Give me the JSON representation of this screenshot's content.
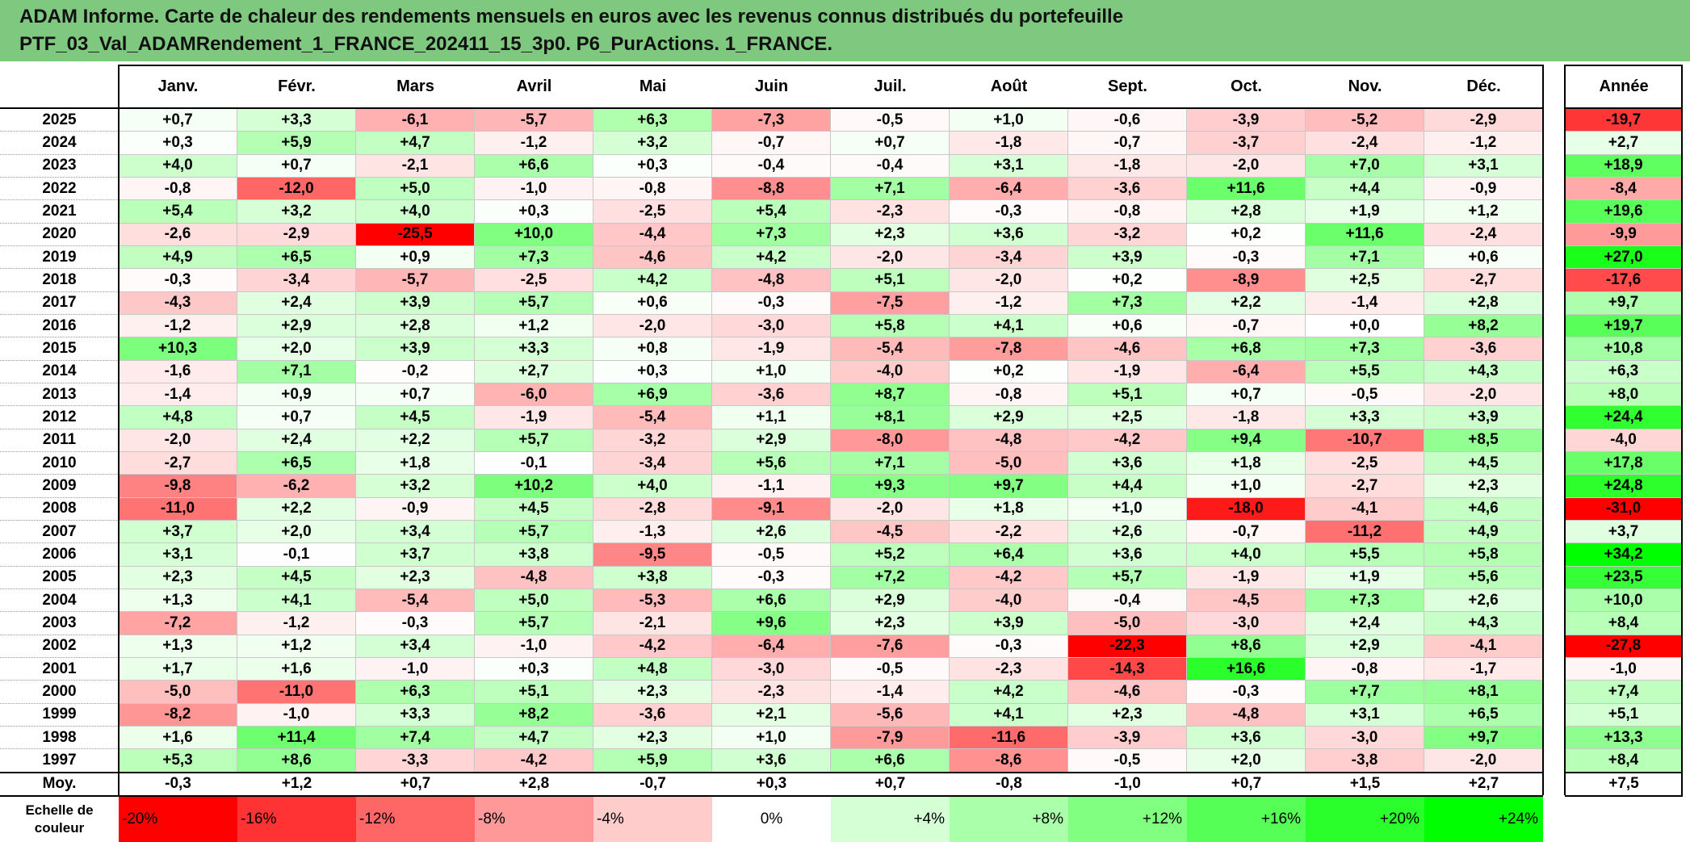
{
  "title": {
    "line1": "ADAM Informe. Carte de chaleur des rendements mensuels en euros avec les revenus connus distribués du portefeuille",
    "line2": "PTF_03_Val_ADAMRendement_1_FRANCE_202411_15_3p0. P6_PurActions. 1_FRANCE."
  },
  "chart_data": {
    "type": "heatmap",
    "months": [
      "Janv.",
      "Févr.",
      "Mars",
      "Avril",
      "Mai",
      "Juin",
      "Juil.",
      "Août",
      "Sept.",
      "Oct.",
      "Nov.",
      "Déc."
    ],
    "annual_label": "Année",
    "years": [
      "2025",
      "2024",
      "2023",
      "2022",
      "2021",
      "2020",
      "2019",
      "2018",
      "2017",
      "2016",
      "2015",
      "2014",
      "2013",
      "2012",
      "2011",
      "2010",
      "2009",
      "2008",
      "2007",
      "2006",
      "2005",
      "2004",
      "2003",
      "2002",
      "2001",
      "2000",
      "1999",
      "1998",
      "1997"
    ],
    "values": [
      [
        "+0,7",
        "+3,3",
        "-6,1",
        "-5,7",
        "+6,3",
        "-7,3",
        "-0,5",
        "+1,0",
        "-0,6",
        "-3,9",
        "-5,2",
        "-2,9"
      ],
      [
        "+0,3",
        "+5,9",
        "+4,7",
        "-1,2",
        "+3,2",
        "-0,7",
        "+0,7",
        "-1,8",
        "-0,7",
        "-3,7",
        "-2,4",
        "-1,2"
      ],
      [
        "+4,0",
        "+0,7",
        "-2,1",
        "+6,6",
        "+0,3",
        "-0,4",
        "-0,4",
        "+3,1",
        "-1,8",
        "-2,0",
        "+7,0",
        "+3,1"
      ],
      [
        "-0,8",
        "-12,0",
        "+5,0",
        "-1,0",
        "-0,8",
        "-8,8",
        "+7,1",
        "-6,4",
        "-3,6",
        "+11,6",
        "+4,4",
        "-0,9"
      ],
      [
        "+5,4",
        "+3,2",
        "+4,0",
        "+0,3",
        "-2,5",
        "+5,4",
        "-2,3",
        "-0,3",
        "-0,8",
        "+2,8",
        "+1,9",
        "+1,2"
      ],
      [
        "-2,6",
        "-2,9",
        "-25,5",
        "+10,0",
        "-4,4",
        "+7,3",
        "+2,3",
        "+3,6",
        "-3,2",
        "+0,2",
        "+11,6",
        "-2,4"
      ],
      [
        "+4,9",
        "+6,5",
        "+0,9",
        "+7,3",
        "-4,6",
        "+4,2",
        "-2,0",
        "-3,4",
        "+3,9",
        "-0,3",
        "+7,1",
        "+0,6"
      ],
      [
        "-0,3",
        "-3,4",
        "-5,7",
        "-2,5",
        "+4,2",
        "-4,8",
        "+5,1",
        "-2,0",
        "+0,2",
        "-8,9",
        "+2,5",
        "-2,7"
      ],
      [
        "-4,3",
        "+2,4",
        "+3,9",
        "+5,7",
        "+0,6",
        "-0,3",
        "-7,5",
        "-1,2",
        "+7,3",
        "+2,2",
        "-1,4",
        "+2,8"
      ],
      [
        "-1,2",
        "+2,9",
        "+2,8",
        "+1,2",
        "-2,0",
        "-3,0",
        "+5,8",
        "+4,1",
        "+0,6",
        "-0,7",
        "+0,0",
        "+8,2"
      ],
      [
        "+10,3",
        "+2,0",
        "+3,9",
        "+3,3",
        "+0,8",
        "-1,9",
        "-5,4",
        "-7,8",
        "-4,6",
        "+6,8",
        "+7,3",
        "-3,6"
      ],
      [
        "-1,6",
        "+7,1",
        "-0,2",
        "+2,7",
        "+0,3",
        "+1,0",
        "-4,0",
        "+0,2",
        "-1,9",
        "-6,4",
        "+5,5",
        "+4,3"
      ],
      [
        "-1,4",
        "+0,9",
        "+0,7",
        "-6,0",
        "+6,9",
        "-3,6",
        "+8,7",
        "-0,8",
        "+5,1",
        "+0,7",
        "-0,5",
        "-2,0"
      ],
      [
        "+4,8",
        "+0,7",
        "+4,5",
        "-1,9",
        "-5,4",
        "+1,1",
        "+8,1",
        "+2,9",
        "+2,5",
        "-1,8",
        "+3,3",
        "+3,9"
      ],
      [
        "-2,0",
        "+2,4",
        "+2,2",
        "+5,7",
        "-3,2",
        "+2,9",
        "-8,0",
        "-4,8",
        "-4,2",
        "+9,4",
        "-10,7",
        "+8,5"
      ],
      [
        "-2,7",
        "+6,5",
        "+1,8",
        "-0,1",
        "-3,4",
        "+5,6",
        "+7,1",
        "-5,0",
        "+3,6",
        "+1,8",
        "-2,5",
        "+4,5"
      ],
      [
        "-9,8",
        "-6,2",
        "+3,2",
        "+10,2",
        "+4,0",
        "-1,1",
        "+9,3",
        "+9,7",
        "+4,4",
        "+1,0",
        "-2,7",
        "+2,3"
      ],
      [
        "-11,0",
        "+2,2",
        "-0,9",
        "+4,5",
        "-2,8",
        "-9,1",
        "-2,0",
        "+1,8",
        "+1,0",
        "-18,0",
        "-4,1",
        "+4,6"
      ],
      [
        "+3,7",
        "+2,0",
        "+3,4",
        "+5,7",
        "-1,3",
        "+2,6",
        "-4,5",
        "-2,2",
        "+2,6",
        "-0,7",
        "-11,2",
        "+4,9"
      ],
      [
        "+3,1",
        "-0,1",
        "+3,7",
        "+3,8",
        "-9,5",
        "-0,5",
        "+5,2",
        "+6,4",
        "+3,6",
        "+4,0",
        "+5,5",
        "+5,8"
      ],
      [
        "+2,3",
        "+4,5",
        "+2,3",
        "-4,8",
        "+3,8",
        "-0,3",
        "+7,2",
        "-4,2",
        "+5,7",
        "-1,9",
        "+1,9",
        "+5,6"
      ],
      [
        "+1,3",
        "+4,1",
        "-5,4",
        "+5,0",
        "-5,3",
        "+6,6",
        "+2,9",
        "-4,0",
        "-0,4",
        "-4,5",
        "+7,3",
        "+2,6"
      ],
      [
        "-7,2",
        "-1,2",
        "-0,3",
        "+5,7",
        "-2,1",
        "+9,6",
        "+2,3",
        "+3,9",
        "-5,0",
        "-3,0",
        "+2,4",
        "+4,3"
      ],
      [
        "+1,3",
        "+1,2",
        "+3,4",
        "-1,0",
        "-4,2",
        "-6,4",
        "-7,6",
        "-0,3",
        "-22,3",
        "+8,6",
        "+2,9",
        "-4,1"
      ],
      [
        "+1,7",
        "+1,6",
        "-1,0",
        "+0,3",
        "+4,8",
        "-3,0",
        "-0,5",
        "-2,3",
        "-14,3",
        "+16,6",
        "-0,8",
        "-1,7"
      ],
      [
        "-5,0",
        "-11,0",
        "+6,3",
        "+5,1",
        "+2,3",
        "-2,3",
        "-1,4",
        "+4,2",
        "-4,6",
        "-0,3",
        "+7,7",
        "+8,1"
      ],
      [
        "-8,2",
        "-1,0",
        "+3,3",
        "+8,2",
        "-3,6",
        "+2,1",
        "-5,6",
        "+4,1",
        "+2,3",
        "-4,8",
        "+3,1",
        "+6,5"
      ],
      [
        "+1,6",
        "+11,4",
        "+7,4",
        "+4,7",
        "+2,3",
        "+1,0",
        "-7,9",
        "-11,6",
        "-3,9",
        "+3,6",
        "-3,0",
        "+9,7"
      ],
      [
        "+5,3",
        "+8,6",
        "-3,3",
        "-4,2",
        "+5,9",
        "+3,6",
        "+6,6",
        "-8,6",
        "-0,5",
        "+2,0",
        "-3,8",
        "-2,0"
      ]
    ],
    "annual": [
      "-19,7",
      "+2,7",
      "+18,9",
      "-8,4",
      "+19,6",
      "-9,9",
      "+27,0",
      "-17,6",
      "+9,7",
      "+19,7",
      "+10,8",
      "+6,3",
      "+8,0",
      "+24,4",
      "-4,0",
      "+17,8",
      "+24,8",
      "-31,0",
      "+3,7",
      "+34,2",
      "+23,5",
      "+10,0",
      "+8,4",
      "-27,8",
      "-1,0",
      "+7,4",
      "+5,1",
      "+13,3",
      "+8,4"
    ],
    "average_label": "Moy.",
    "average": [
      "-0,3",
      "+1,2",
      "+0,7",
      "+2,8",
      "-0,7",
      "+0,3",
      "+0,7",
      "-0,8",
      "-1,0",
      "+0,7",
      "+1,5",
      "+2,7"
    ],
    "average_annual": "+7,5",
    "color_scale": {
      "label": "Echelle de couleur",
      "stops": [
        "-20%",
        "-16%",
        "-12%",
        "-8%",
        "-4%",
        "0%",
        "+4%",
        "+8%",
        "+12%",
        "+16%",
        "+20%",
        "+24%"
      ],
      "negative_color": "#ff0000",
      "neutral_color": "#ffffff",
      "positive_color": "#00ff00"
    }
  }
}
